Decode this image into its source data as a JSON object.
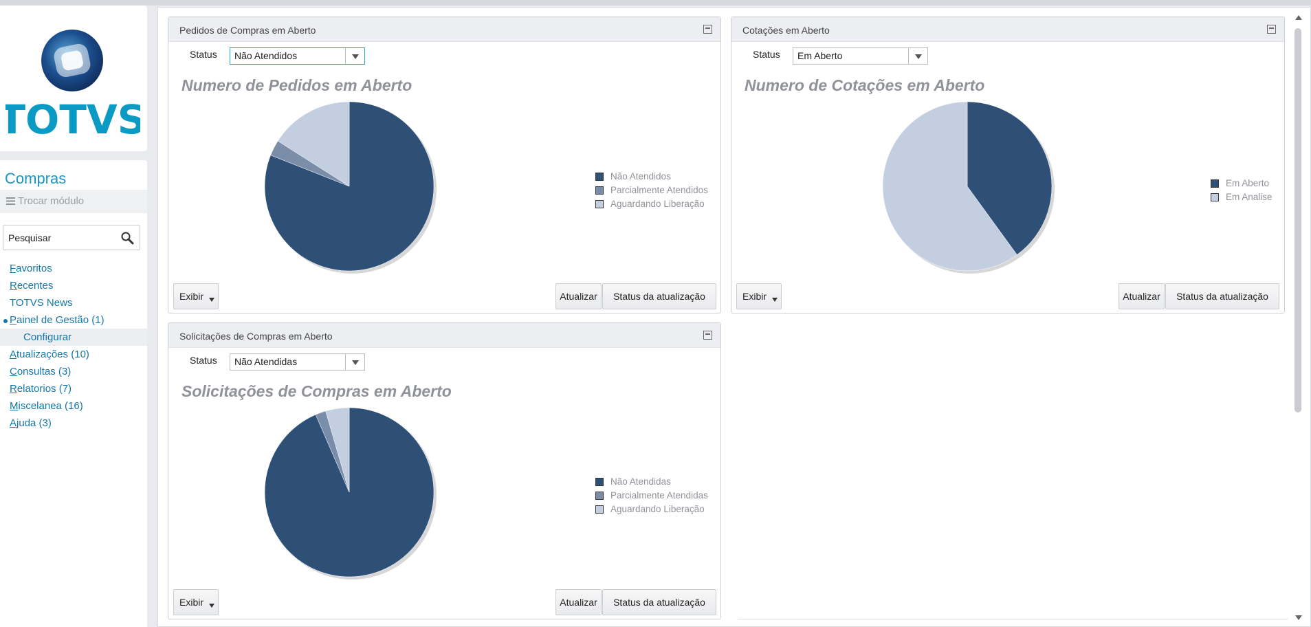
{
  "brand": {
    "logo_text": "TOTVS",
    "color": "#0b9ac4"
  },
  "sidebar": {
    "module_title": "Compras",
    "switch_module": "Trocar módulo",
    "search_placeholder": "Pesquisar",
    "items": [
      {
        "first": "F",
        "rest": "avoritos"
      },
      {
        "first": "R",
        "rest": "ecentes"
      },
      {
        "first": "",
        "rest": "TOTVS News"
      },
      {
        "first": "P",
        "rest": "ainel de Gestão (1)"
      },
      {
        "first": "",
        "rest": "Configurar"
      },
      {
        "first": "A",
        "rest": "tualizações (10)"
      },
      {
        "first": "C",
        "rest": "onsultas (3)"
      },
      {
        "first": "R",
        "rest": "elatorios (7)"
      },
      {
        "first": "M",
        "rest": "iscelanea (16)"
      },
      {
        "first": "A",
        "rest": "juda (3)"
      }
    ]
  },
  "colors": {
    "dark": "#2e5077",
    "mid": "#7a8ea9",
    "light": "#c3cfe0"
  },
  "widgets": [
    {
      "title": "Pedidos de Compras em Aberto",
      "status_label": "Status",
      "status_value": "Não Atendidos",
      "chart_title": "Numero de Pedidos em Aberto",
      "buttons": {
        "exibir": "Exibir",
        "atualizar": "Atualizar",
        "status": "Status da atualização"
      }
    },
    {
      "title": "Cotações em Aberto",
      "status_label": "Status",
      "status_value": "Em Aberto",
      "chart_title": "Numero de Cotações em Aberto",
      "buttons": {
        "exibir": "Exibir",
        "atualizar": "Atualizar",
        "status": "Status da atualização"
      }
    },
    {
      "title": "Solicitações de Compras em Aberto",
      "status_label": "Status",
      "status_value": "Não Atendidas",
      "chart_title": "Solicitações de Compras em Aberto",
      "buttons": {
        "exibir": "Exibir",
        "atualizar": "Atualizar",
        "status": "Status da atualização"
      }
    }
  ],
  "chart_data": [
    {
      "type": "pie",
      "title": "Numero de Pedidos em Aberto",
      "legend_position": "right",
      "categories": [
        "Não Atendidos",
        "Parcialmente Atendidos",
        "Aguardando Liberação"
      ],
      "values": [
        81,
        3,
        16
      ],
      "colors": [
        "#2e5077",
        "#7a8ea9",
        "#c3cfe0"
      ]
    },
    {
      "type": "pie",
      "title": "Numero de Cotações em Aberto",
      "legend_position": "right",
      "categories": [
        "Em Aberto",
        "Em Analise"
      ],
      "values": [
        40,
        60
      ],
      "colors": [
        "#2e5077",
        "#c3cfe0"
      ]
    },
    {
      "type": "pie",
      "title": "Solicitações de Compras em Aberto",
      "legend_position": "right",
      "categories": [
        "Não Atendidas",
        "Parcialmente Atendidas",
        "Aguardando Liberação"
      ],
      "values": [
        93.5,
        2,
        4.5
      ],
      "colors": [
        "#2e5077",
        "#7a8ea9",
        "#c3cfe0"
      ]
    }
  ]
}
